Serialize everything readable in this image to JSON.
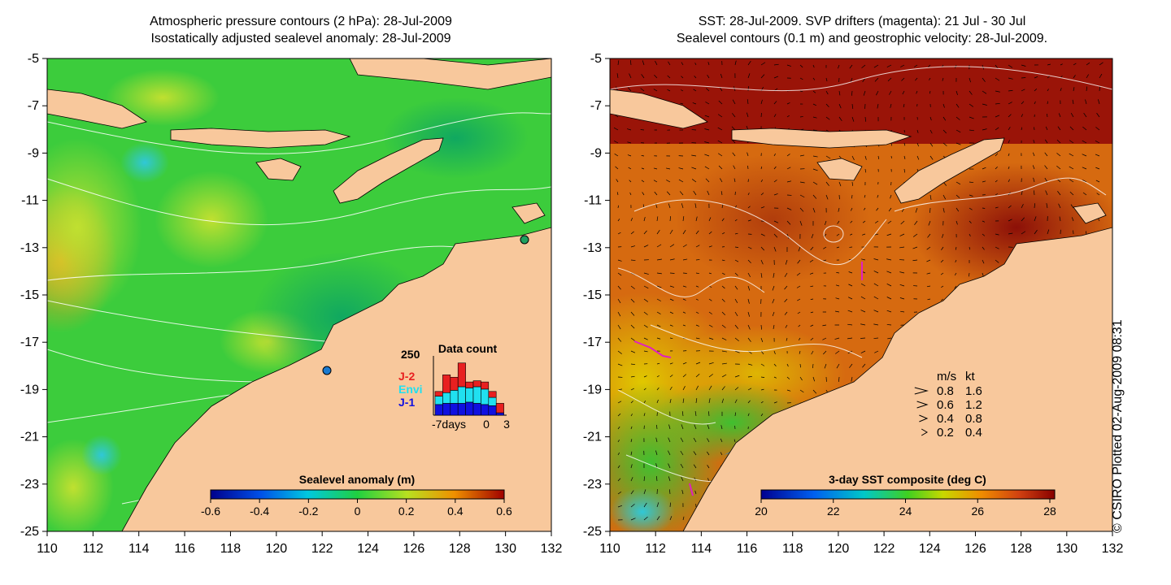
{
  "left_panel": {
    "title_line1": "Atmospheric pressure contours (2 hPa): 28-Jul-2009",
    "title_line2": "Isostatically adjusted sealevel anomaly: 28-Jul-2009",
    "colorbar": {
      "label": "Sealevel anomaly (m)",
      "ticks": [
        "-0.6",
        "-0.4",
        "-0.2",
        "0",
        "0.2",
        "0.4",
        "0.6"
      ]
    },
    "inset": {
      "title": "Data count",
      "ymax_label": "250",
      "legend": [
        {
          "label": "J-2",
          "color": "#e82020"
        },
        {
          "label": "Envi",
          "color": "#20e0f0"
        },
        {
          "label": "J-1",
          "color": "#1010e0"
        }
      ],
      "xlabels": [
        "-7days",
        "0",
        "3"
      ],
      "bars": [
        {
          "j1": 0.18,
          "envi": 0.14,
          "j2": 0.08
        },
        {
          "j1": 0.2,
          "envi": 0.18,
          "j2": 0.3
        },
        {
          "j1": 0.2,
          "envi": 0.22,
          "j2": 0.22
        },
        {
          "j1": 0.2,
          "envi": 0.28,
          "j2": 0.4
        },
        {
          "j1": 0.22,
          "envi": 0.24,
          "j2": 0.1
        },
        {
          "j1": 0.2,
          "envi": 0.28,
          "j2": 0.1
        },
        {
          "j1": 0.18,
          "envi": 0.26,
          "j2": 0.12
        },
        {
          "j1": 0.16,
          "envi": 0.14,
          "j2": 0.1
        },
        {
          "j1": 0.04,
          "envi": 0.0,
          "j2": 0.16
        }
      ]
    }
  },
  "right_panel": {
    "title_line1": "SST: 28-Jul-2009. SVP drifters (magenta): 21 Jul - 30 Jul",
    "title_line2": "Sealevel contours (0.1 m) and geostrophic velocity: 28-Jul-2009.",
    "colorbar": {
      "label": "3-day SST composite (deg C)",
      "ticks": [
        "20",
        "22",
        "24",
        "26",
        "28"
      ]
    },
    "velocity_legend": {
      "header_ms": "m/s",
      "header_kt": "kt",
      "rows": [
        {
          "ms": "0.8",
          "kt": "1.6"
        },
        {
          "ms": "0.6",
          "kt": "1.2"
        },
        {
          "ms": "0.4",
          "kt": "0.8"
        },
        {
          "ms": "0.2",
          "kt": "0.4"
        }
      ]
    }
  },
  "axes": {
    "lat_labels": [
      "-5",
      "-7",
      "-9",
      "-11",
      "-13",
      "-15",
      "-17",
      "-19",
      "-21",
      "-23",
      "-25"
    ],
    "lon_labels": [
      "110",
      "112",
      "114",
      "116",
      "118",
      "120",
      "122",
      "124",
      "126",
      "128",
      "130",
      "132"
    ]
  },
  "credit": "© CSIRO Plotted 02-Aug-2009 08:31",
  "colors": {
    "land": "#f8c89c",
    "sla_base": "#3ccc3c",
    "sst_base": "#d66a10",
    "sst_warm": "#9a1408"
  }
}
